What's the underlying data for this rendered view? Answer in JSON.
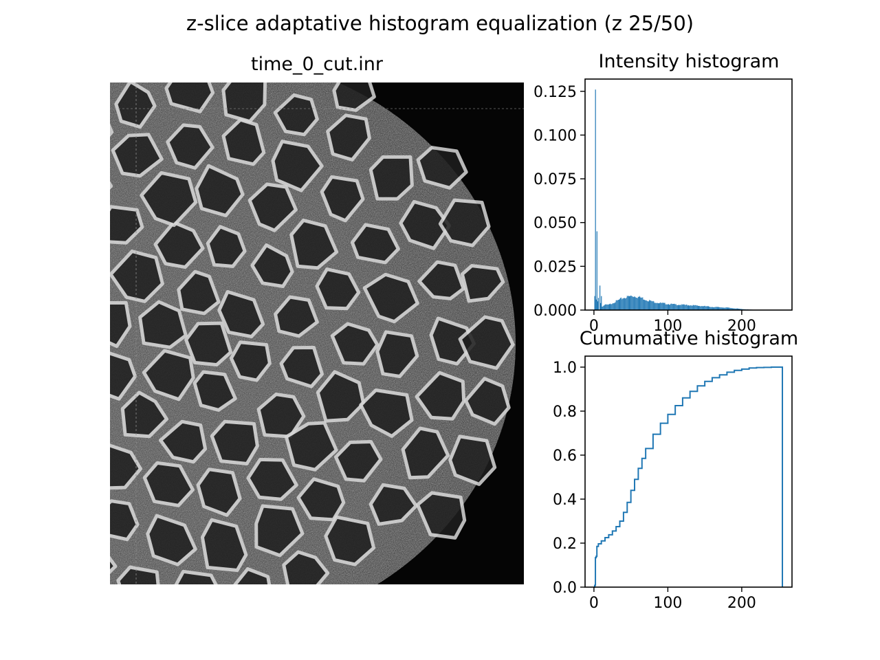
{
  "figure": {
    "suptitle": "z-slice adaptative histogram equalization (z 25/50)"
  },
  "image_panel": {
    "title": "time_0_cut.inr"
  },
  "chart_data": [
    {
      "type": "bar",
      "title": "Intensity histogram",
      "xlabel": "",
      "ylabel": "",
      "xlim": [
        -12,
        268
      ],
      "ylim": [
        0,
        0.132
      ],
      "x_ticks": [
        0,
        100,
        200
      ],
      "x_tick_labels": [
        "0",
        "100",
        "200"
      ],
      "y_ticks": [
        0,
        0.025,
        0.05,
        0.075,
        0.1,
        0.125
      ],
      "y_tick_labels": [
        "0.000",
        "0.025",
        "0.050",
        "0.075",
        "0.100",
        "0.125"
      ],
      "color": "#1f77b4",
      "spikes": [
        {
          "x": 1,
          "value": 0.008
        },
        {
          "x": 2,
          "value": 0.126
        },
        {
          "x": 3,
          "value": 0.006
        },
        {
          "x": 4,
          "value": 0.045
        },
        {
          "x": 5,
          "value": 0.005
        },
        {
          "x": 6,
          "value": 0.007
        },
        {
          "x": 8,
          "value": 0.014
        },
        {
          "x": 9,
          "value": 0.004
        },
        {
          "x": 10,
          "value": 0.008
        }
      ],
      "curve": [
        [
          11,
          0.002
        ],
        [
          15,
          0.003
        ],
        [
          20,
          0.003
        ],
        [
          25,
          0.004
        ],
        [
          30,
          0.005
        ],
        [
          35,
          0.006
        ],
        [
          40,
          0.007
        ],
        [
          45,
          0.0075
        ],
        [
          50,
          0.008
        ],
        [
          55,
          0.008
        ],
        [
          60,
          0.0075
        ],
        [
          65,
          0.007
        ],
        [
          70,
          0.006
        ],
        [
          80,
          0.0048
        ],
        [
          90,
          0.004
        ],
        [
          100,
          0.0035
        ],
        [
          110,
          0.0032
        ],
        [
          120,
          0.003
        ],
        [
          130,
          0.0028
        ],
        [
          140,
          0.0025
        ],
        [
          150,
          0.0022
        ],
        [
          160,
          0.0018
        ],
        [
          170,
          0.0016
        ],
        [
          180,
          0.0014
        ],
        [
          190,
          0.001
        ],
        [
          200,
          0.0006
        ],
        [
          210,
          0.0003
        ],
        [
          220,
          0.0001
        ],
        [
          230,
          5e-05
        ],
        [
          255,
          0.0
        ]
      ]
    },
    {
      "type": "line",
      "title": "Cumumative histogram",
      "xlabel": "",
      "ylabel": "",
      "xlim": [
        -12,
        268
      ],
      "ylim": [
        0,
        1.05
      ],
      "x_ticks": [
        0,
        100,
        200
      ],
      "x_tick_labels": [
        "0",
        "100",
        "200"
      ],
      "y_ticks": [
        0,
        0.2,
        0.4,
        0.6,
        0.8,
        1.0
      ],
      "y_tick_labels": [
        "0.0",
        "0.2",
        "0.4",
        "0.6",
        "0.8",
        "1.0"
      ],
      "color": "#1f77b4",
      "step": true,
      "points": [
        [
          0,
          0.0
        ],
        [
          1,
          0.008
        ],
        [
          2,
          0.134
        ],
        [
          3,
          0.14
        ],
        [
          4,
          0.185
        ],
        [
          6,
          0.197
        ],
        [
          10,
          0.21
        ],
        [
          15,
          0.225
        ],
        [
          20,
          0.238
        ],
        [
          25,
          0.255
        ],
        [
          30,
          0.275
        ],
        [
          35,
          0.3
        ],
        [
          40,
          0.34
        ],
        [
          45,
          0.385
        ],
        [
          50,
          0.44
        ],
        [
          55,
          0.49
        ],
        [
          60,
          0.54
        ],
        [
          65,
          0.585
        ],
        [
          70,
          0.63
        ],
        [
          80,
          0.695
        ],
        [
          90,
          0.745
        ],
        [
          100,
          0.785
        ],
        [
          110,
          0.825
        ],
        [
          120,
          0.86
        ],
        [
          130,
          0.89
        ],
        [
          140,
          0.915
        ],
        [
          150,
          0.935
        ],
        [
          160,
          0.952
        ],
        [
          170,
          0.965
        ],
        [
          180,
          0.977
        ],
        [
          190,
          0.985
        ],
        [
          200,
          0.991
        ],
        [
          210,
          0.996
        ],
        [
          220,
          0.998
        ],
        [
          230,
          0.999
        ],
        [
          240,
          1.0
        ],
        [
          255,
          1.0
        ],
        [
          255,
          0.0
        ]
      ]
    }
  ]
}
